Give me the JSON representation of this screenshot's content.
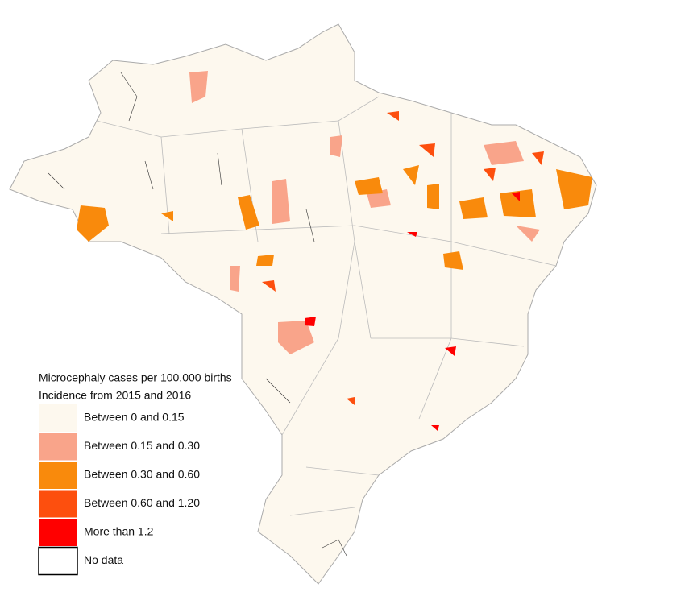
{
  "legend": {
    "title": [
      "Microcephaly cases per 100.000 births",
      "Incidence from 2015 and 2016"
    ],
    "items": [
      {
        "label": "Between 0 and 0.15",
        "color": "#fdf8ee"
      },
      {
        "label": "Between 0.15 and 0.30",
        "color": "#f9a48a"
      },
      {
        "label": "Between 0.30 and 0.60",
        "color": "#f98a0c"
      },
      {
        "label": "Between 0.60 and 1.20",
        "color": "#fd4f0e"
      },
      {
        "label": "More than 1.2",
        "color": "#ff0000"
      },
      {
        "label": "No data",
        "color": "#ffffff"
      }
    ]
  }
}
